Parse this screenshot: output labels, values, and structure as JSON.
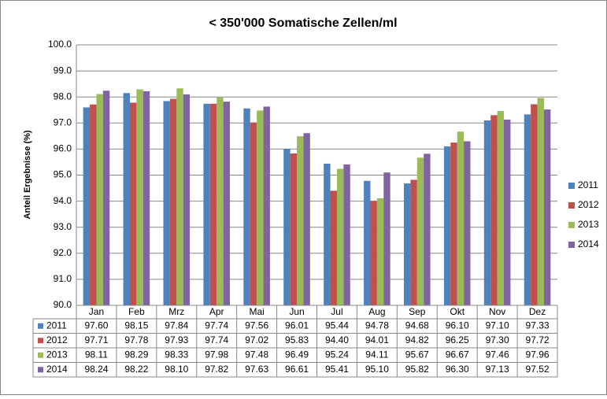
{
  "chart_data": {
    "type": "bar",
    "title": "< 350'000 Somatische Zellen/ml",
    "y_label": "Anteil Ergebnisse (%)",
    "categories": [
      "Jan",
      "Feb",
      "Mrz",
      "Apr",
      "Mai",
      "Jun",
      "Jul",
      "Aug",
      "Sep",
      "Okt",
      "Nov",
      "Dez"
    ],
    "series": [
      {
        "name": "2011",
        "color": "#4f81bd",
        "values": [
          97.6,
          98.15,
          97.84,
          97.74,
          97.56,
          96.01,
          95.44,
          94.78,
          94.68,
          96.1,
          97.1,
          97.33
        ],
        "value_labels": [
          "97.60",
          "98.15",
          "97.84",
          "97.74",
          "97.56",
          "96.01",
          "95.44",
          "94.78",
          "94.68",
          "96.10",
          "97.10",
          "97.33"
        ]
      },
      {
        "name": "2012",
        "color": "#c0504d",
        "values": [
          97.71,
          97.78,
          97.93,
          97.74,
          97.02,
          95.83,
          94.4,
          94.01,
          94.82,
          96.25,
          97.3,
          97.72
        ],
        "value_labels": [
          "97.71",
          "97.78",
          "97.93",
          "97.74",
          "97.02",
          "95.83",
          "94.40",
          "94.01",
          "94.82",
          "96.25",
          "97.30",
          "97.72"
        ]
      },
      {
        "name": "2013",
        "color": "#9bbb59",
        "values": [
          98.11,
          98.29,
          98.33,
          97.98,
          97.48,
          96.49,
          95.24,
          94.11,
          95.67,
          96.67,
          97.46,
          97.96
        ],
        "value_labels": [
          "98.11",
          "98.29",
          "98.33",
          "97.98",
          "97.48",
          "96.49",
          "95.24",
          "94.11",
          "95.67",
          "96.67",
          "97.46",
          "97.96"
        ]
      },
      {
        "name": "2014",
        "color": "#8064a2",
        "values": [
          98.24,
          98.22,
          98.1,
          97.82,
          97.63,
          96.61,
          95.41,
          95.1,
          95.82,
          96.3,
          97.13,
          97.52
        ],
        "value_labels": [
          "98.24",
          "98.22",
          "98.10",
          "97.82",
          "97.63",
          "96.61",
          "95.41",
          "95.10",
          "95.82",
          "96.30",
          "97.13",
          "97.52"
        ]
      }
    ],
    "ylim": [
      90,
      100
    ],
    "yticks": [
      {
        "value": 90,
        "label": "90.0"
      },
      {
        "value": 91,
        "label": "91.0"
      },
      {
        "value": 92,
        "label": "92.0"
      },
      {
        "value": 93,
        "label": "93.0"
      },
      {
        "value": 94,
        "label": "94.0"
      },
      {
        "value": 95,
        "label": "95.0"
      },
      {
        "value": 96,
        "label": "96.0"
      },
      {
        "value": 97,
        "label": "97.0"
      },
      {
        "value": 98,
        "label": "98.0"
      },
      {
        "value": 99,
        "label": "99.0"
      },
      {
        "value": 100,
        "label": "100.0"
      }
    ],
    "grid": true,
    "legend": "right",
    "data_table": true
  }
}
